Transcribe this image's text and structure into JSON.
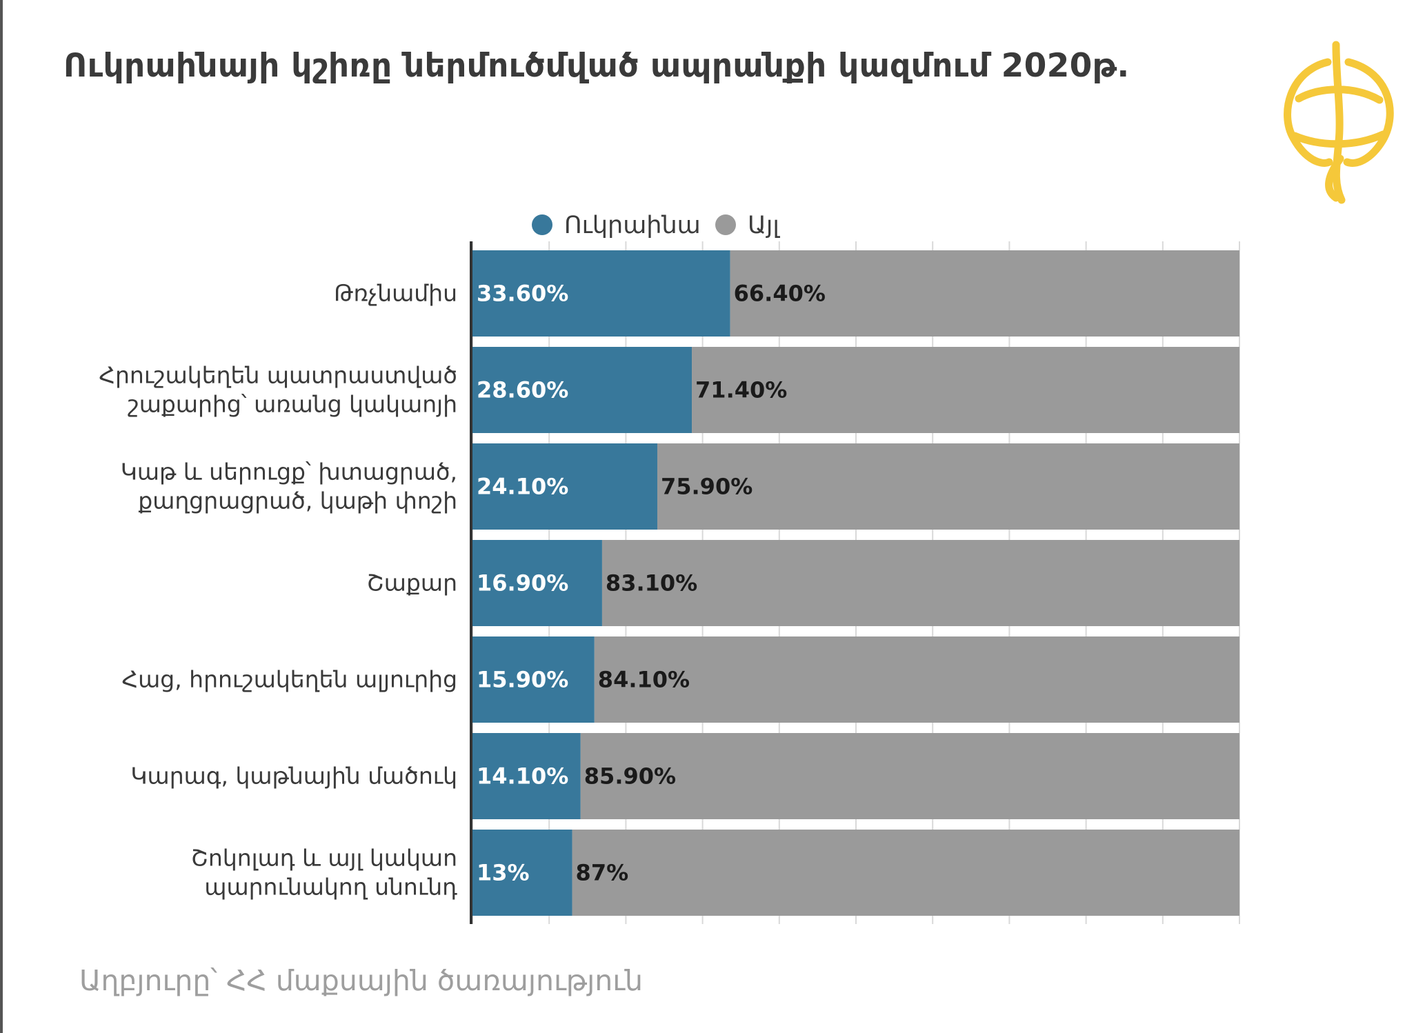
{
  "title": "Ուկրաինայի կշիռը ներմուծմված ապրանքի կազմում 2020թ.",
  "source": "Աղբյուրը՝ ՀՀ մաքսային ծառայություն",
  "colors": {
    "ukraine": "#38789b",
    "other": "#9a9a9a",
    "logo": "#f5c83a"
  },
  "chart_data": {
    "type": "bar",
    "orientation": "horizontal",
    "stacked": true,
    "categories": [
      [
        "Թռչնամիս"
      ],
      [
        "Հրուշակեղեն պատրաստված",
        "շաքարից՝ առանց կակաոյի"
      ],
      [
        "Կաթ և սերուցք՝ խտացրած,",
        "քաղցրացրած, կաթի փոշի"
      ],
      [
        "Շաքար"
      ],
      [
        "Հաց, հրուշակեղեն ալյուրից"
      ],
      [
        "Կարագ, կաթնային մածուկ"
      ],
      [
        "Շոկոլադ և այլ կակաո",
        "պարունակող սնունդ"
      ]
    ],
    "series": [
      {
        "name": "Ուկրաինա",
        "values": [
          33.6,
          28.6,
          24.1,
          16.9,
          15.9,
          14.1,
          13
        ],
        "labels": [
          "33.60%",
          "28.60%",
          "24.10%",
          "16.90%",
          "15.90%",
          "14.10%",
          "13%"
        ]
      },
      {
        "name": "Այլ",
        "values": [
          66.4,
          71.4,
          75.9,
          83.1,
          84.1,
          85.9,
          87
        ],
        "labels": [
          "66.40%",
          "71.40%",
          "75.90%",
          "83.10%",
          "84.10%",
          "85.90%",
          "87%"
        ]
      }
    ],
    "xlim": [
      0,
      100
    ],
    "grid": true,
    "legend": "top"
  }
}
